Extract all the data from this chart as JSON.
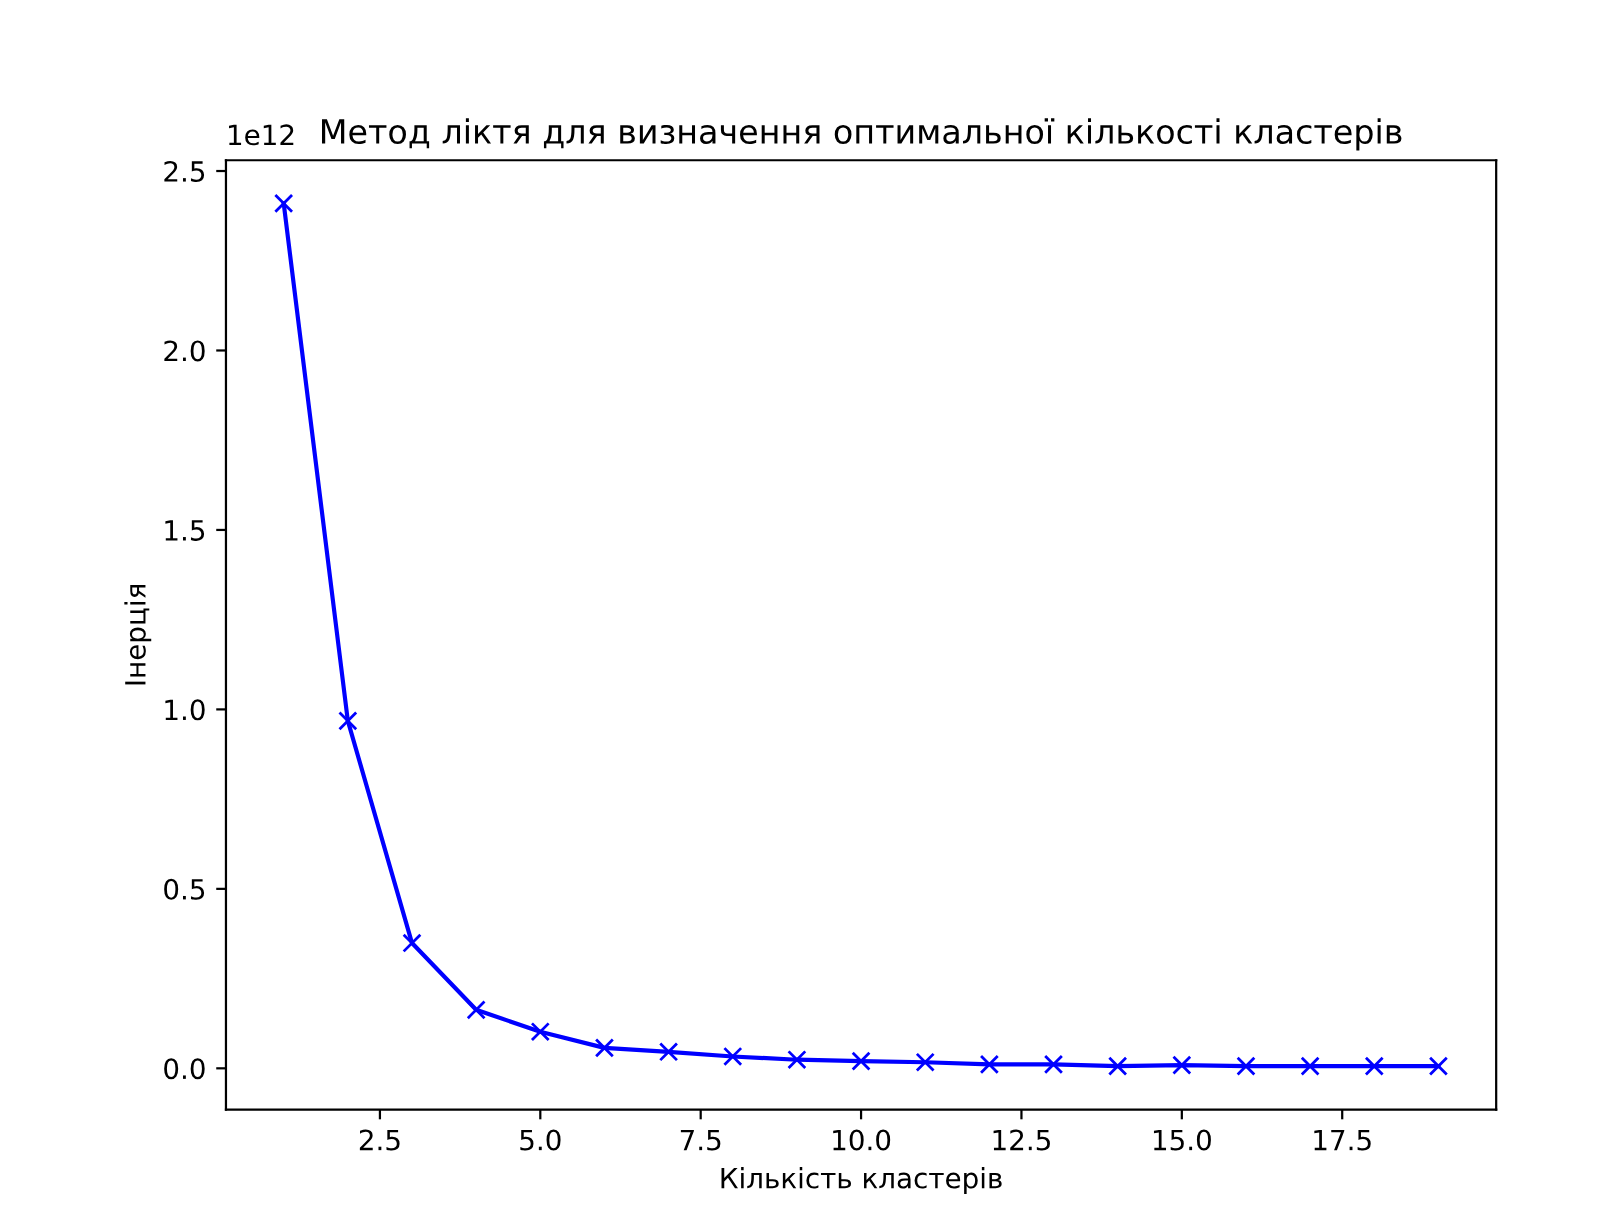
{
  "chart_data": {
    "type": "line",
    "title": "Метод ліктя для визначення оптимальної кількості кластерів",
    "xlabel": "Кількість кластерів",
    "ylabel": "Інерція",
    "annotations": [
      "1e12"
    ],
    "x": [
      1,
      2,
      3,
      4,
      5,
      6,
      7,
      8,
      9,
      10,
      11,
      12,
      13,
      14,
      15,
      16,
      17,
      18,
      19
    ],
    "series": [
      {
        "color": "#0000ff",
        "values": [
          2.41,
          0.968,
          0.349,
          0.163,
          0.102,
          0.057,
          0.046,
          0.033,
          0.024,
          0.02,
          0.017,
          0.011,
          0.011,
          0.006,
          0.009,
          0.006,
          0.006,
          0.006,
          0.006
        ]
      }
    ],
    "marker": "cross",
    "line_style": "solid",
    "grid": false,
    "legend": false,
    "xlim": [
      0.1,
      19.9
    ],
    "xticks": [
      2.5,
      {
        "value": 5,
        "label": "5.0"
      },
      7.5,
      {
        "value": 10,
        "label": "10.0"
      },
      12.5,
      {
        "value": 15,
        "label": "15.0"
      },
      17.5
    ],
    "ylim": [
      -0.115,
      2.53
    ],
    "yticks": [
      {
        "value": 0,
        "label": "0.0"
      },
      0.5,
      {
        "value": 1,
        "label": "1.0"
      },
      1.5,
      {
        "value": 2,
        "label": "2.0"
      },
      2.5
    ]
  }
}
